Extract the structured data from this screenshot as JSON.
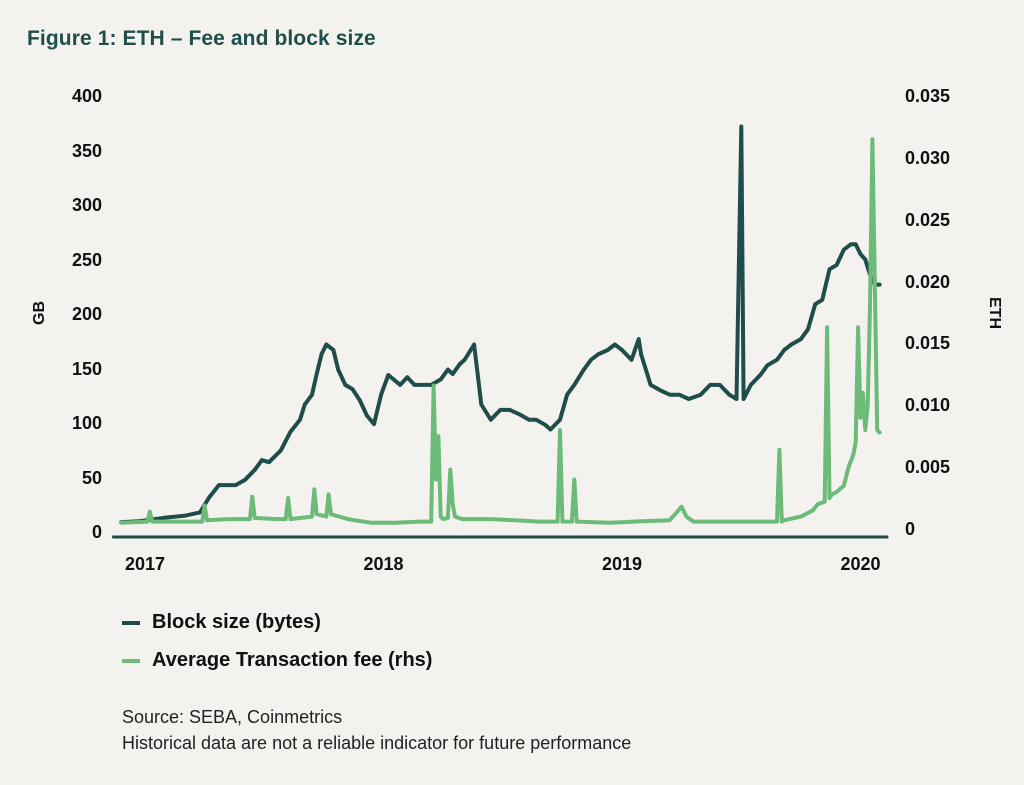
{
  "title": "Figure 1: ETH – Fee and block size",
  "colors": {
    "background": "#f4f2ee",
    "title": "#1f4f4b",
    "block_size": "#1e4d4a",
    "fee": "#6dbb78",
    "axis": "#1e4d4a"
  },
  "legend": [
    {
      "label": "Block size (bytes)",
      "color": "#1e4d4a"
    },
    {
      "label": "Average Transaction fee (rhs)",
      "color": "#6dbb78"
    }
  ],
  "footer": {
    "source": "Source: SEBA, Coinmetrics",
    "disclaimer": "Historical data are not a reliable indicator for future performance"
  },
  "chart_data": {
    "type": "line",
    "title": "Figure 1: ETH – Fee and block size",
    "xlabel": "",
    "ylabel": "GB",
    "ylabel_right": "ETH",
    "x_ticks": [
      "2017",
      "2018",
      "2019",
      "2020"
    ],
    "x_tick_values": [
      2017.0,
      2018.0,
      2019.0,
      2020.0
    ],
    "xlim": [
      2016.9,
      2020.1
    ],
    "ylim": [
      0,
      400
    ],
    "y_ticks": [
      "0",
      "50",
      "100",
      "150",
      "200",
      "250",
      "300",
      "350",
      "400"
    ],
    "y_tick_values": [
      0,
      50,
      100,
      150,
      200,
      250,
      300,
      350,
      400
    ],
    "ylim_right": [
      0,
      0.035
    ],
    "y_ticks_right": [
      "0",
      "0.005",
      "0.010",
      "0.015",
      "0.020",
      "0.025",
      "0.030",
      "0.035"
    ],
    "y_tick_values_right": [
      0,
      0.005,
      0.01,
      0.015,
      0.02,
      0.025,
      0.03,
      0.035
    ],
    "grid": false,
    "legend_position": "bottom-left",
    "series": [
      {
        "name": "Block size (bytes)",
        "axis": "left",
        "x": [
          2016.9,
          2016.98,
          2017.08,
          2017.17,
          2017.23,
          2017.27,
          2017.31,
          2017.38,
          2017.42,
          2017.46,
          2017.49,
          2017.52,
          2017.57,
          2017.61,
          2017.65,
          2017.67,
          2017.7,
          2017.72,
          2017.74,
          2017.76,
          2017.79,
          2017.81,
          2017.84,
          2017.87,
          2017.9,
          2017.93,
          2017.96,
          2017.99,
          2018.02,
          2018.07,
          2018.1,
          2018.13,
          2018.16,
          2018.2,
          2018.24,
          2018.27,
          2018.29,
          2018.32,
          2018.34,
          2018.38,
          2018.41,
          2018.45,
          2018.49,
          2018.53,
          2018.57,
          2018.61,
          2018.64,
          2018.68,
          2018.7,
          2018.74,
          2018.77,
          2018.8,
          2018.84,
          2018.87,
          2018.9,
          2018.94,
          2018.97,
          2019.0,
          2019.04,
          2019.07,
          2019.08,
          2019.12,
          2019.16,
          2019.2,
          2019.24,
          2019.28,
          2019.33,
          2019.37,
          2019.41,
          2019.45,
          2019.48,
          2019.5,
          2019.51,
          2019.54,
          2019.58,
          2019.61,
          2019.65,
          2019.68,
          2019.71,
          2019.75,
          2019.78,
          2019.81,
          2019.84,
          2019.87,
          2019.9,
          2019.93,
          2019.96,
          2019.98,
          2020.0,
          2020.02,
          2020.04,
          2020.06,
          2020.08
        ],
        "values": [
          9,
          10,
          13,
          15,
          18,
          32,
          43,
          43,
          48,
          57,
          66,
          64,
          75,
          92,
          103,
          117,
          126,
          145,
          163,
          172,
          167,
          149,
          135,
          131,
          121,
          107,
          99,
          126,
          144,
          135,
          142,
          135,
          135,
          135,
          140,
          149,
          145,
          154,
          158,
          172,
          117,
          103,
          112,
          112,
          108,
          103,
          103,
          98,
          94,
          103,
          126,
          135,
          149,
          158,
          163,
          167,
          172,
          167,
          158,
          177,
          163,
          135,
          130,
          126,
          126,
          122,
          126,
          135,
          135,
          126,
          122,
          372,
          122,
          135,
          144,
          153,
          158,
          167,
          172,
          177,
          186,
          209,
          213,
          241,
          245,
          259,
          264,
          264,
          255,
          250,
          236,
          227,
          227
        ],
        "min": 9,
        "max": 372
      },
      {
        "name": "Average Transaction fee (rhs)",
        "axis": "right",
        "x": [
          2016.9,
          2017.01,
          2017.02,
          2017.03,
          2017.1,
          2017.24,
          2017.25,
          2017.26,
          2017.35,
          2017.44,
          2017.45,
          2017.46,
          2017.55,
          2017.59,
          2017.6,
          2017.61,
          2017.7,
          2017.71,
          2017.72,
          2017.76,
          2017.77,
          2017.78,
          2017.85,
          2017.95,
          2018.05,
          2018.15,
          2018.2,
          2018.21,
          2018.22,
          2018.23,
          2018.24,
          2018.25,
          2018.27,
          2018.28,
          2018.29,
          2018.3,
          2018.33,
          2018.45,
          2018.55,
          2018.65,
          2018.73,
          2018.74,
          2018.75,
          2018.79,
          2018.8,
          2018.81,
          2018.95,
          2019.05,
          2019.2,
          2019.25,
          2019.27,
          2019.3,
          2019.4,
          2019.55,
          2019.65,
          2019.66,
          2019.67,
          2019.68,
          2019.75,
          2019.8,
          2019.82,
          2019.85,
          2019.86,
          2019.87,
          2019.88,
          2019.9,
          2019.93,
          2019.95,
          2019.97,
          2019.98,
          2019.99,
          2020.0,
          2020.01,
          2020.02,
          2020.03,
          2020.04,
          2020.05,
          2020.06,
          2020.07,
          2020.08
        ],
        "values": [
          0.0005,
          0.0006,
          0.0014,
          0.0006,
          0.0006,
          0.0006,
          0.0019,
          0.0007,
          0.0008,
          0.0008,
          0.0026,
          0.0009,
          0.0008,
          0.0008,
          0.0025,
          0.0008,
          0.001,
          0.0032,
          0.0012,
          0.001,
          0.0028,
          0.0012,
          0.0008,
          0.0005,
          0.0005,
          0.0006,
          0.0006,
          0.0116,
          0.004,
          0.0075,
          0.001,
          0.0008,
          0.0009,
          0.0048,
          0.002,
          0.001,
          0.0008,
          0.0008,
          0.0007,
          0.0006,
          0.0006,
          0.008,
          0.0006,
          0.0006,
          0.004,
          0.0006,
          0.0005,
          0.0006,
          0.0007,
          0.0018,
          0.001,
          0.0006,
          0.0006,
          0.0006,
          0.0006,
          0.0064,
          0.0006,
          0.0007,
          0.001,
          0.0015,
          0.002,
          0.0022,
          0.0163,
          0.0025,
          0.0028,
          0.003,
          0.0035,
          0.005,
          0.006,
          0.007,
          0.0163,
          0.009,
          0.011,
          0.008,
          0.01,
          0.018,
          0.0315,
          0.02,
          0.008,
          0.0078
        ],
        "min": 0.0005,
        "max": 0.0315
      }
    ]
  }
}
